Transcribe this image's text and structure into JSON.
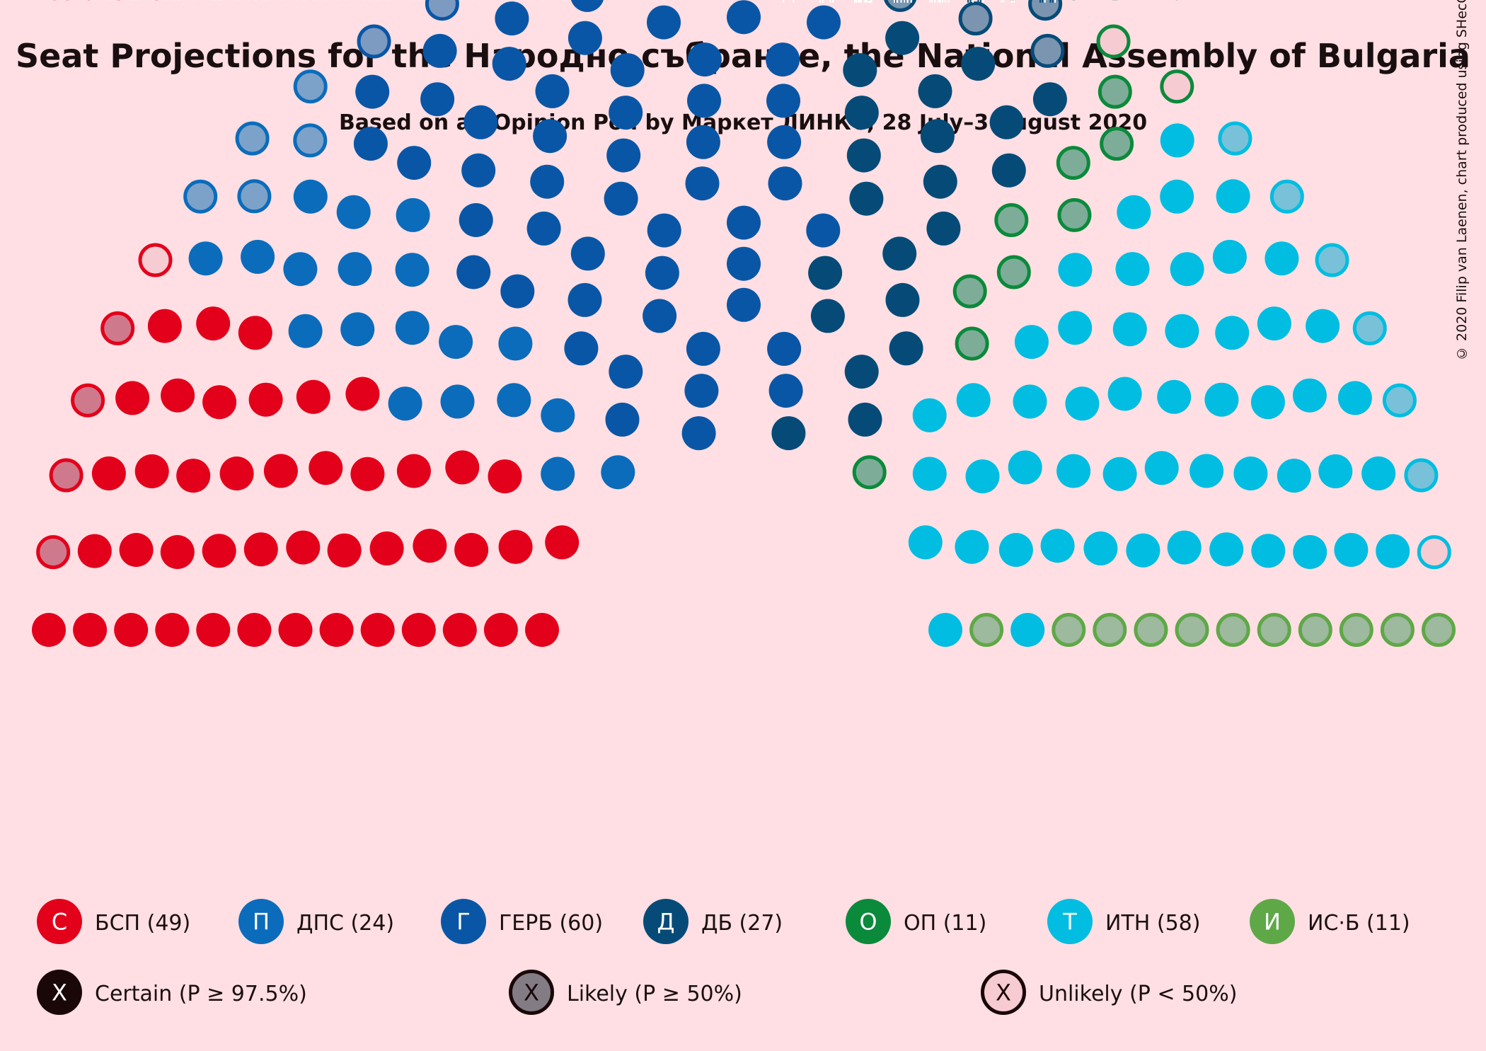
{
  "title": "Seat Projections for the Народно събрание, the National Assembly of Bulgaria",
  "subtitle": "Based on an Opinion Poll by Маркет ЛИНКС, 28 July–3 August 2020",
  "copyright": "© 2020 Filip van Laenen, chart produced using SHecC",
  "chart_data": {
    "type": "parliament",
    "total_seats": 240,
    "parties": [
      {
        "name": "БСП",
        "seats": 49,
        "letter": "С",
        "color": "#e3001b",
        "likely": 4,
        "unlikely": 1,
        "label": "БСП (49)"
      },
      {
        "name": "ДПС",
        "seats": 24,
        "letter": "П",
        "color": "#0b6cbb",
        "likely": 5,
        "unlikely": 0,
        "label": "ДПС (24)"
      },
      {
        "name": "ГЕРБ",
        "seats": 60,
        "letter": "Г",
        "color": "#0a56a6",
        "likely": 9,
        "unlikely": 1,
        "label": "ГЕРБ (60)"
      },
      {
        "name": "ДБ",
        "seats": 27,
        "letter": "Д",
        "color": "#064b78",
        "likely": 6,
        "unlikely": 0,
        "label": "ДБ (27)"
      },
      {
        "name": "ОП",
        "seats": 11,
        "letter": "О",
        "color": "#0b8a3b",
        "likely": 9,
        "unlikely": 2,
        "label": "ОП (11)"
      },
      {
        "name": "ИТН",
        "seats": 58,
        "letter": "Т",
        "color": "#00bde1",
        "likely": 6,
        "unlikely": 1,
        "label": "ИТН (58)"
      },
      {
        "name": "ИС·Б",
        "seats": 11,
        "letter": "И",
        "color": "#5fa848",
        "likely": 11,
        "unlikely": 0,
        "label": "ИС·Б (11)"
      }
    ],
    "status_legend": [
      {
        "name": "Certain",
        "label": "Certain (P ≥ 97.5%)",
        "symbol": "X"
      },
      {
        "name": "Likely",
        "label": "Likely (P ≥ 50%)",
        "symbol": "X"
      },
      {
        "name": "Unlikely",
        "label": "Unlikely (P < 50%)",
        "symbol": "X"
      }
    ]
  }
}
